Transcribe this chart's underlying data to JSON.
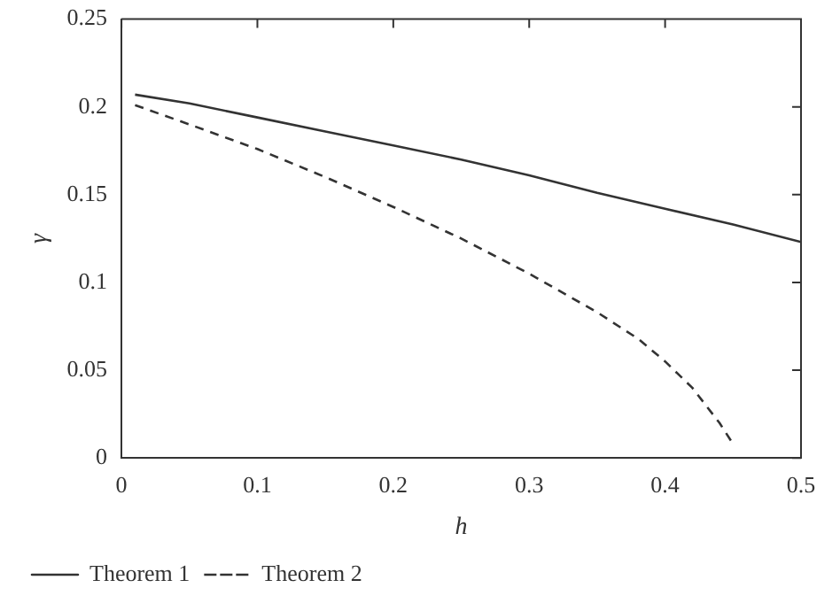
{
  "chart_data": {
    "type": "line",
    "xlabel": "h",
    "ylabel": "γ",
    "xlim": [
      0,
      0.5
    ],
    "xticks": [
      0,
      0.1,
      0.2,
      0.3,
      0.4,
      0.5
    ],
    "ylim": [
      0,
      0.25
    ],
    "yticks": [
      0,
      0.05,
      0.1,
      0.15,
      0.2,
      0.25
    ],
    "grid": false,
    "legend": "bottom left",
    "marker": "none",
    "series": [
      {
        "name": "Theorem 1",
        "color": "#333333",
        "line_style": "solid",
        "x": [
          0.01,
          0.05,
          0.1,
          0.15,
          0.2,
          0.25,
          0.3,
          0.35,
          0.4,
          0.45,
          0.5
        ],
        "values": [
          0.207,
          0.202,
          0.194,
          0.186,
          0.178,
          0.17,
          0.161,
          0.151,
          0.142,
          0.133,
          0.123
        ]
      },
      {
        "name": "Theorem 2",
        "color": "#333333",
        "line_style": "dashed",
        "x": [
          0.01,
          0.05,
          0.1,
          0.15,
          0.2,
          0.25,
          0.3,
          0.35,
          0.38,
          0.4,
          0.42,
          0.44,
          0.45
        ],
        "values": [
          0.201,
          0.19,
          0.176,
          0.16,
          0.143,
          0.125,
          0.105,
          0.083,
          0.068,
          0.055,
          0.04,
          0.02,
          0.008
        ]
      }
    ]
  }
}
